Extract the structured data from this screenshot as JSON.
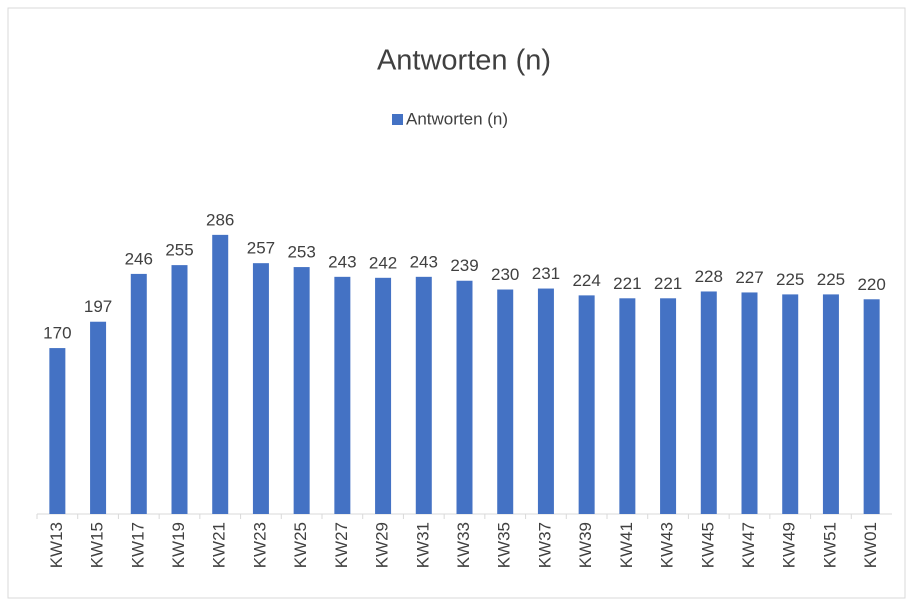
{
  "chart_data": {
    "type": "bar",
    "title": "Antworten (n)",
    "categories": [
      "KW13",
      "KW15",
      "KW17",
      "KW19",
      "KW21",
      "KW23",
      "KW25",
      "KW27",
      "KW29",
      "KW31",
      "KW33",
      "KW35",
      "KW37",
      "KW39",
      "KW41",
      "KW43",
      "KW45",
      "KW47",
      "KW49",
      "KW51",
      "KW01"
    ],
    "series": [
      {
        "name": "Antworten (n)",
        "color": "#4472c4",
        "values": [
          170,
          197,
          246,
          255,
          286,
          257,
          253,
          243,
          242,
          243,
          239,
          230,
          231,
          224,
          221,
          221,
          228,
          227,
          225,
          225,
          220
        ]
      }
    ],
    "legend": "top"
  }
}
